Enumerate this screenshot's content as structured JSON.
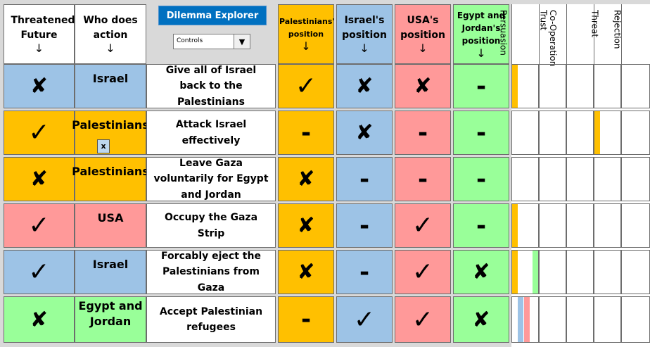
{
  "headers": {
    "threatened": "Threatened Future",
    "who": "Who does action",
    "arrow": "↓",
    "palestinians": "Palestinians' position",
    "israel": "Israel's position",
    "usa": "USA's position",
    "egypt": "Egypt and Jordan's position"
  },
  "toolbar": {
    "title_button": "Dilemma Explorer",
    "dropdown_value": "Controls",
    "dropdown_arrow": "▼"
  },
  "strategy_columns": [
    "Persuasion",
    "Trust",
    "Co-Operation",
    "Threat",
    "Rejection"
  ],
  "symbols": {
    "tick": "✓",
    "cross": "✘",
    "dash": "-"
  },
  "colors": {
    "palestinians": "#ffc000",
    "israel": "#9dc3e6",
    "usa": "#ff9999",
    "egypt": "#99ff99",
    "title_button": "#0070c0"
  },
  "rows": [
    {
      "threatened": "✘",
      "who": "Israel",
      "action": "Give all of Israel back to the Palestinians",
      "pal": "✓",
      "isr": "✘",
      "usa": "✘",
      "egy": "-"
    },
    {
      "threatened": "✓",
      "who": "Palestinians",
      "who_box": "x",
      "action": "Attack Israel effectively",
      "pal": "-",
      "isr": "✘",
      "usa": "-",
      "egy": "-"
    },
    {
      "threatened": "✘",
      "who": "Palestinians",
      "action": "Leave Gaza voluntarily for Egypt and Jordan",
      "pal": "✘",
      "isr": "-",
      "usa": "-",
      "egy": "-"
    },
    {
      "threatened": "✓",
      "who": "USA",
      "action": "Occupy the Gaza Strip",
      "pal": "✘",
      "isr": "-",
      "usa": "✓",
      "egy": "-"
    },
    {
      "threatened": "✓",
      "who": "Israel",
      "action": "Forcably eject the Palestinians from Gaza",
      "pal": "✘",
      "isr": "-",
      "usa": "✓",
      "egy": "✘"
    },
    {
      "threatened": "✘",
      "who": "Egypt and Jordan",
      "action": "Accept Palestinian refugees",
      "pal": "-",
      "isr": "✓",
      "usa": "✓",
      "egy": "✘"
    }
  ]
}
